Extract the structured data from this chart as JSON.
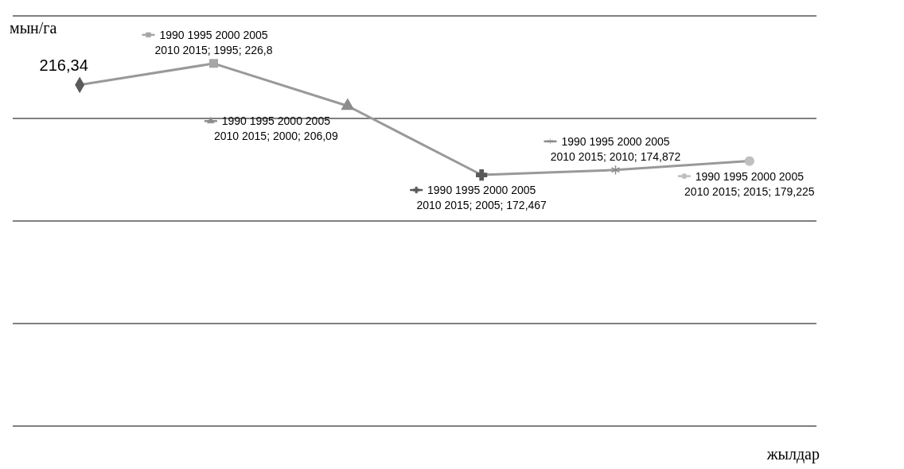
{
  "chart_data": {
    "type": "line",
    "xlabel": "жылдар",
    "ylabel": "мын/га",
    "categories": [
      null,
      null,
      null,
      null,
      null,
      null
    ],
    "ylim": [
      50,
      250
    ],
    "yticks": [
      {
        "value": 50,
        "label": null
      },
      {
        "value": 100,
        "label": null
      },
      {
        "value": 150,
        "label": null
      },
      {
        "value": 200,
        "label": null
      },
      {
        "value": 250,
        "label": null
      }
    ],
    "grid": "y",
    "marker": "diamond",
    "series": [
      {
        "color": "#999999",
        "colors": [
          "#5a5a5a",
          "#a6a6a6",
          "#8c8c8c",
          "#595959",
          "#8c8c8c",
          "#bfbfbf"
        ],
        "values": [
          216.34,
          226.8,
          206.09,
          172.467,
          174.872,
          179.225
        ],
        "value_labels": [
          "216,34",
          "1990 1995 2000 2005 2010 2015; 1995; 226,8",
          "1990 1995 2000 2005 2010 2015; 2000; 206,09",
          "1990 1995 2000 2005 2010 2015; 2005; 172,467",
          "1990 1995 2000 2005 2010 2015; 2010; 174,872",
          "1990 1995 2000 2005 2010 2015; 2015; 179,225"
        ]
      }
    ]
  }
}
